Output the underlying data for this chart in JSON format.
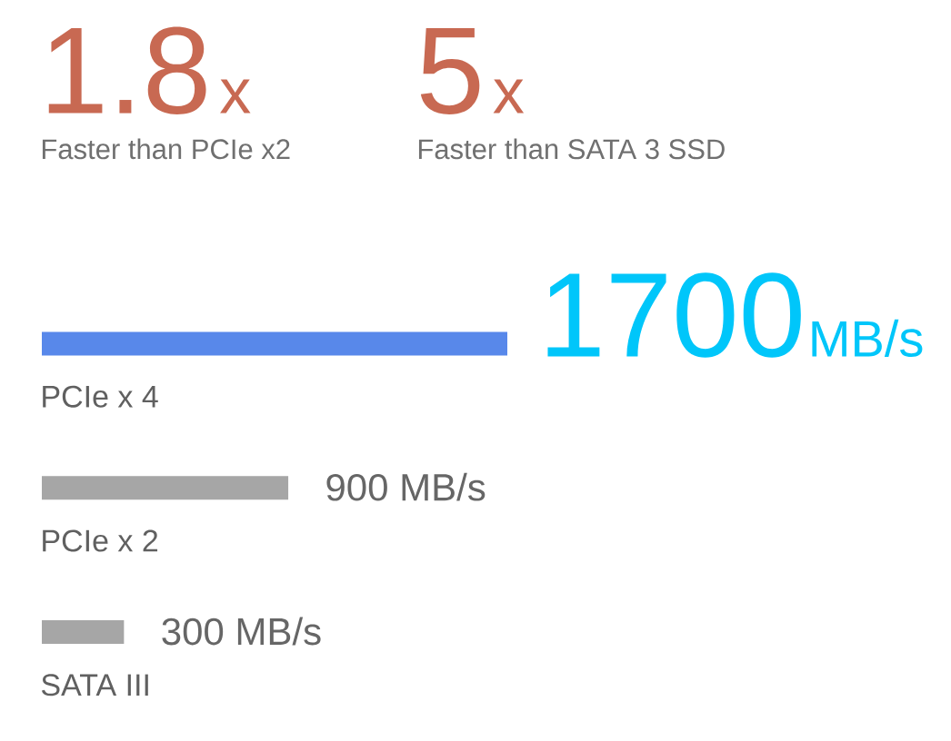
{
  "chart_data": {
    "type": "bar",
    "orientation": "horizontal",
    "categories": [
      "PCIe x 4",
      "PCIe x 2",
      "SATA III"
    ],
    "values": [
      1700,
      900,
      300
    ],
    "colors": [
      "#5888ea",
      "#a6a6a6",
      "#a6a6a6"
    ],
    "value_labels": [
      "1700",
      "900 MB/s",
      "300 MB/s"
    ],
    "annotations": [
      "1.8",
      "x",
      "Faster than PCIe x2",
      "5",
      "x",
      "Faster than SATA 3 SSD",
      "MB/s"
    ]
  }
}
